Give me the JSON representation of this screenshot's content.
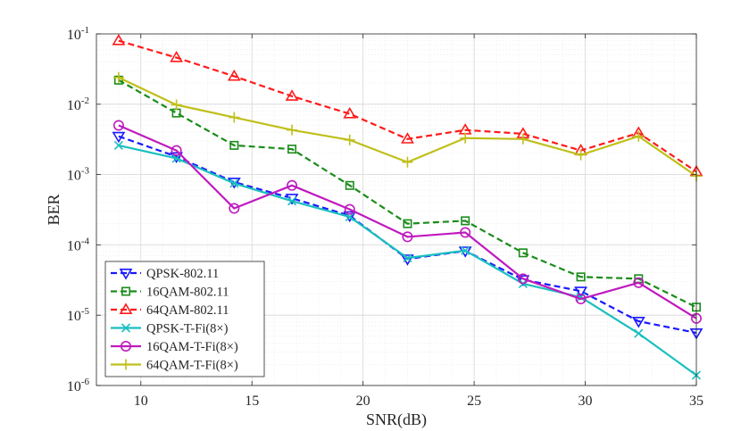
{
  "chart_data": {
    "type": "line",
    "title": "",
    "xlabel": "SNR(dB)",
    "ylabel": "BER",
    "yscale": "log",
    "xlim": [
      8,
      35
    ],
    "ylim_exponents": [
      -6,
      -1
    ],
    "grid": true,
    "legend_position": "bottom-left",
    "x_ticks": [
      10,
      15,
      20,
      25,
      30,
      35
    ],
    "y_ticks": [
      {
        "base": "10",
        "exp": "-6"
      },
      {
        "base": "10",
        "exp": "-5"
      },
      {
        "base": "10",
        "exp": "-4"
      },
      {
        "base": "10",
        "exp": "-3"
      },
      {
        "base": "10",
        "exp": "-2"
      },
      {
        "base": "10",
        "exp": "-1"
      }
    ],
    "x": [
      9,
      11.6,
      14.2,
      16.8,
      19.4,
      22,
      24.6,
      27.2,
      29.8,
      32.4,
      35
    ],
    "series": [
      {
        "name": "QPSK-802.11",
        "color": "#1a1aff",
        "dash": "dashed",
        "marker": "triangle-down",
        "values": [
          0.0035,
          0.0018,
          0.00078,
          0.00046,
          0.00026,
          6.3e-05,
          8.2e-05,
          3.2e-05,
          2.2e-05,
          8.2e-06,
          5.6e-06
        ]
      },
      {
        "name": "16QAM-802.11",
        "color": "#1a8c1a",
        "dash": "dashed",
        "marker": "square",
        "values": [
          0.022,
          0.0075,
          0.0026,
          0.0023,
          0.0007,
          0.0002,
          0.00022,
          7.7e-05,
          3.5e-05,
          3.3e-05,
          1.3e-05
        ]
      },
      {
        "name": "64QAM-802.11",
        "color": "#ff1a1a",
        "dash": "dashed",
        "marker": "triangle-up",
        "values": [
          0.08,
          0.046,
          0.025,
          0.013,
          0.0073,
          0.0032,
          0.0043,
          0.0038,
          0.0022,
          0.0039,
          0.0011
        ]
      },
      {
        "name": "QPSK-T-Fi(8×)",
        "color": "#1abfbf",
        "dash": "solid",
        "marker": "x",
        "values": [
          0.0026,
          0.0017,
          0.00075,
          0.00042,
          0.00025,
          6.5e-05,
          8.3e-05,
          2.8e-05,
          1.8e-05,
          5.5e-06,
          1.4e-06
        ]
      },
      {
        "name": "16QAM-T-Fi(8×)",
        "color": "#bf1abf",
        "dash": "solid",
        "marker": "circle",
        "values": [
          0.005,
          0.0022,
          0.00033,
          0.0007,
          0.00032,
          0.00013,
          0.00015,
          3.3e-05,
          1.7e-05,
          2.9e-05,
          9e-06
        ]
      },
      {
        "name": "64QAM-T-Fi(8×)",
        "color": "#bfbf1a",
        "dash": "solid",
        "marker": "plus",
        "values": [
          0.024,
          0.0098,
          0.0065,
          0.0043,
          0.0031,
          0.0015,
          0.0033,
          0.0032,
          0.0019,
          0.0035,
          0.00095
        ]
      }
    ]
  }
}
